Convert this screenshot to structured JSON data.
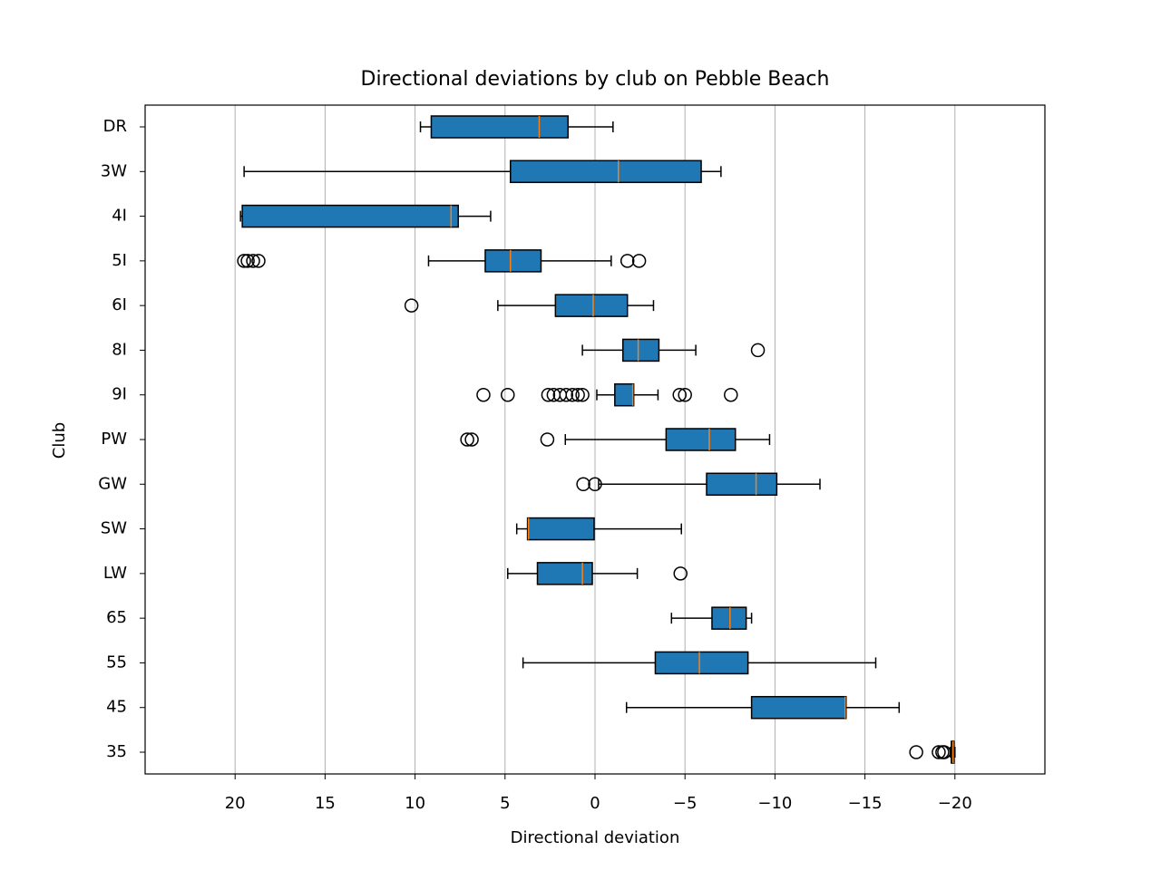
{
  "chart_data": {
    "type": "boxplot",
    "orientation": "horizontal",
    "title": "Directional deviations by club on Pebble Beach",
    "xlabel": "Directional deviation",
    "ylabel": "Club",
    "categories": [
      "DR",
      "3W",
      "4I",
      "5I",
      "6I",
      "8I",
      "9I",
      "PW",
      "GW",
      "SW",
      "LW",
      "65",
      "55",
      "45",
      "35"
    ],
    "box_color": "#1f77b4",
    "median_color": "#ff7f0e",
    "grid": true,
    "xlim": [
      25,
      -25
    ],
    "xticks": [
      20,
      15,
      10,
      5,
      0,
      {
        "value": -5,
        "label": "−5"
      },
      {
        "value": -10,
        "label": "−10"
      },
      {
        "value": -15,
        "label": "−15"
      },
      {
        "value": -20,
        "label": "−20"
      }
    ],
    "boxes": [
      {
        "whislo": -1.0,
        "q1": 1.5,
        "med": 3.1,
        "q3": 9.1,
        "whishi": 9.7,
        "fliers": []
      },
      {
        "whislo": -7.0,
        "q1": -5.9,
        "med": -1.3,
        "q3": 4.7,
        "whishi": 19.5,
        "fliers": []
      },
      {
        "whislo": 5.8,
        "q1": 7.6,
        "med": 8.0,
        "q3": 19.6,
        "whishi": 19.7,
        "fliers": []
      },
      {
        "whislo": -0.9,
        "q1": 3.0,
        "med": 4.7,
        "q3": 6.1,
        "whishi": 9.25,
        "fliers": [
          19.5,
          19.3,
          19.0,
          18.7,
          -1.8,
          -2.45
        ]
      },
      {
        "whislo": -3.25,
        "q1": -1.8,
        "med": 0.1,
        "q3": 2.2,
        "whishi": 5.4,
        "fliers": [
          10.2
        ]
      },
      {
        "whislo": -5.6,
        "q1": -3.55,
        "med": -2.4,
        "q3": -1.55,
        "whishi": 0.7,
        "fliers": [
          -9.05
        ]
      },
      {
        "whislo": -3.5,
        "q1": -2.15,
        "med": -2.1,
        "q3": -1.1,
        "whishi": -0.1,
        "fliers": [
          6.2,
          4.85,
          2.6,
          2.3,
          1.95,
          1.6,
          1.25,
          0.95,
          0.7,
          -4.7,
          -5.0,
          -7.55
        ]
      },
      {
        "whislo": -9.7,
        "q1": -7.8,
        "med": -6.35,
        "q3": -3.95,
        "whishi": 1.65,
        "fliers": [
          7.1,
          6.85,
          2.65
        ]
      },
      {
        "whislo": -12.5,
        "q1": -10.1,
        "med": -8.95,
        "q3": -6.2,
        "whishi": -0.2,
        "fliers": [
          0.65,
          0.0
        ]
      },
      {
        "whislo": -4.8,
        "q1": 0.05,
        "med": 3.7,
        "q3": 3.75,
        "whishi": 4.35,
        "fliers": []
      },
      {
        "whislo": -2.35,
        "q1": 0.15,
        "med": 0.7,
        "q3": 3.2,
        "whishi": 4.85,
        "fliers": [
          -4.75
        ]
      },
      {
        "whislo": -8.7,
        "q1": -8.4,
        "med": -7.5,
        "q3": -6.5,
        "whishi": -4.25,
        "fliers": []
      },
      {
        "whislo": -15.6,
        "q1": -8.5,
        "med": -5.8,
        "q3": -3.35,
        "whishi": 4.0,
        "fliers": []
      },
      {
        "whislo": -16.9,
        "q1": -13.95,
        "med": -13.9,
        "q3": -8.7,
        "whishi": -1.75,
        "fliers": []
      },
      {
        "whislo": -20.0,
        "q1": -19.95,
        "med": -19.9,
        "q3": -19.8,
        "whishi": -19.75,
        "fliers": [
          -17.85,
          -19.1,
          -19.3,
          -19.4
        ]
      }
    ]
  }
}
